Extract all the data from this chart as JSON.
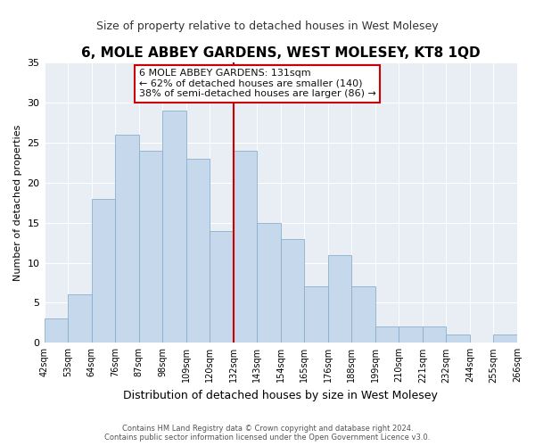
{
  "title": "6, MOLE ABBEY GARDENS, WEST MOLESEY, KT8 1QD",
  "subtitle": "Size of property relative to detached houses in West Molesey",
  "xlabel": "Distribution of detached houses by size in West Molesey",
  "ylabel": "Number of detached properties",
  "bin_labels": [
    "42sqm",
    "53sqm",
    "64sqm",
    "76sqm",
    "87sqm",
    "98sqm",
    "109sqm",
    "120sqm",
    "132sqm",
    "143sqm",
    "154sqm",
    "165sqm",
    "176sqm",
    "188sqm",
    "199sqm",
    "210sqm",
    "221sqm",
    "232sqm",
    "244sqm",
    "255sqm",
    "266sqm"
  ],
  "values": [
    3,
    6,
    18,
    26,
    24,
    29,
    23,
    14,
    24,
    15,
    13,
    7,
    11,
    7,
    2,
    2,
    2,
    1,
    0,
    1
  ],
  "bar_color": "#c5d8ec",
  "bar_edge_color": "#8ab0cc",
  "highlight_line_color": "#cc0000",
  "highlight_bin_index": 8,
  "ylim": [
    0,
    35
  ],
  "yticks": [
    0,
    5,
    10,
    15,
    20,
    25,
    30,
    35
  ],
  "annotation_title": "6 MOLE ABBEY GARDENS: 131sqm",
  "annotation_line1": "← 62% of detached houses are smaller (140)",
  "annotation_line2": "38% of semi-detached houses are larger (86) →",
  "annotation_box_edge": "#cc0000",
  "footer_line1": "Contains HM Land Registry data © Crown copyright and database right 2024.",
  "footer_line2": "Contains public sector information licensed under the Open Government Licence v3.0.",
  "background_color": "#ffffff",
  "plot_bg_color": "#e8eef4",
  "grid_color": "#ffffff"
}
